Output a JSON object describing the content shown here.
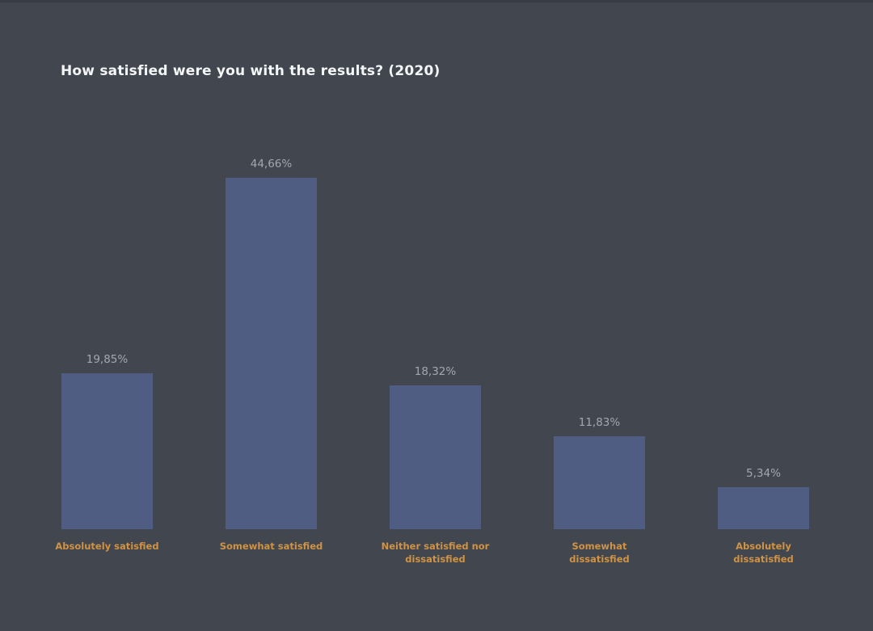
{
  "background_color": "#42464f",
  "chart_data": {
    "type": "bar",
    "title": "How satisfied were you with the results? (2020)",
    "categories": [
      "Absolutely satisfied",
      "Somewhat satisfied",
      "Neither satisfied nor dissatisfied",
      "Somewhat dissatisfied",
      "Absolutely dissatisfied"
    ],
    "values": [
      19.85,
      44.66,
      18.32,
      11.83,
      5.34
    ],
    "value_labels": [
      "19,85%",
      "44,66%",
      "18,32%",
      "11,83%",
      "5,34%"
    ],
    "xlabel": "",
    "ylabel": "",
    "ylim": [
      0,
      45
    ],
    "grid": false,
    "legend": false,
    "bar_color": "#4f5d82",
    "value_label_color": "#a3a7af",
    "category_label_color": "#cf9343",
    "title_color": "#f4f5f7"
  }
}
